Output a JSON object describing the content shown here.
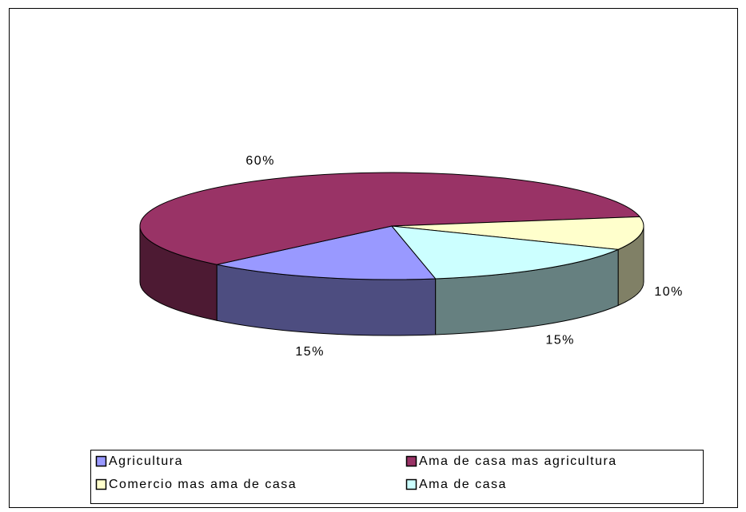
{
  "chart_data": {
    "type": "pie3d",
    "categories": [
      "Agricultura",
      "Ama de casa mas agricultura",
      "Comercio mas ama de casa",
      "Ama de casa"
    ],
    "values": [
      15,
      60,
      10,
      15
    ],
    "value_labels": [
      "15%",
      "60%",
      "10%",
      "15%"
    ],
    "colors": [
      "#9999ff",
      "#993366",
      "#ffffcc",
      "#ccffff"
    ],
    "legend": "bottom"
  }
}
